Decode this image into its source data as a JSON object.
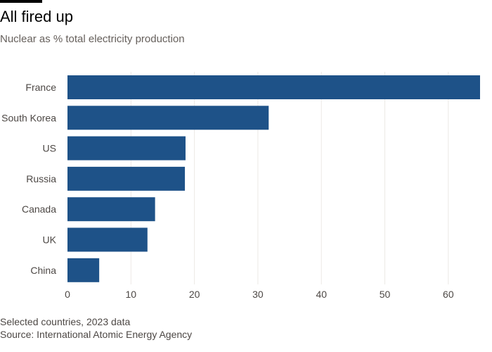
{
  "header": {
    "title": "All fired up",
    "subtitle": "Nuclear as % total electricity production"
  },
  "footer": {
    "note": "Selected countries, 2023 data",
    "source": "Source: International Atomic Energy Agency"
  },
  "colors": {
    "bar": "#1e5288",
    "grid": "#ece9e6",
    "text": "#4d4845"
  },
  "chart_data": {
    "type": "bar",
    "orientation": "horizontal",
    "title": "All fired up",
    "subtitle": "Nuclear as % total electricity production",
    "xlabel": "",
    "ylabel": "",
    "categories": [
      "France",
      "South Korea",
      "US",
      "Russia",
      "Canada",
      "UK",
      "China"
    ],
    "values": [
      65,
      31.7,
      18.6,
      18.5,
      13.8,
      12.6,
      5
    ],
    "xlim": [
      0,
      65
    ],
    "xticks": [
      0,
      10,
      20,
      30,
      40,
      50,
      60
    ],
    "grid": true,
    "legend": "none"
  }
}
